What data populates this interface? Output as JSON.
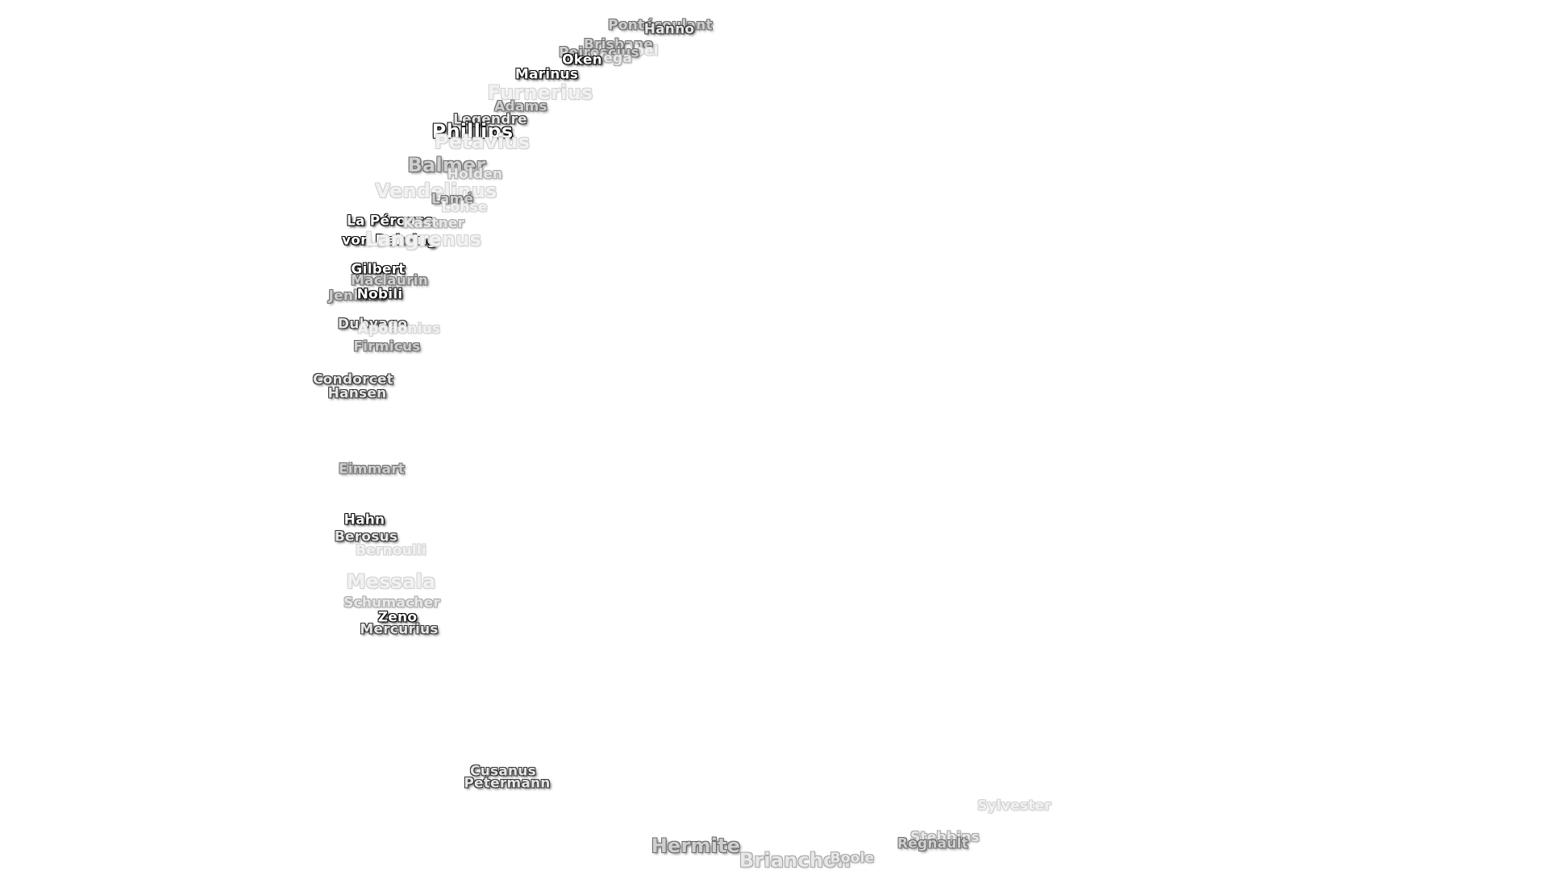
{
  "map_labels": {
    "pontecoulant": "Pontécoulant",
    "hanno": "Hanno",
    "brisbane": "Brisbane",
    "abel": "Abel",
    "peirescius": "Peirescius",
    "vega": "Vega",
    "oken": "Oken",
    "marinus": "Marinus",
    "furnerius": "Furnerius",
    "adams": "Adams",
    "legendre": "Legendre",
    "phillips": "Phillips",
    "petavius": "Petavius",
    "balmer": "Balmer",
    "holden": "Holden",
    "vendelinus": "Vendelinus",
    "lame": "Lamé",
    "lohse": "Lohse",
    "la_perouse": "La Pérouse",
    "kastner": "Kästner",
    "von_behring": "von Behring",
    "langrenus": "Langrenus",
    "gilbert": "Gilbert",
    "maclaurin": "Maclaurin",
    "jenkins": "Jenkins",
    "nobili": "Nobili",
    "dubyago": "Dubyago",
    "apollonius": "Apollonius",
    "firmicus": "Firmicus",
    "condorcet": "Condorcet",
    "hansen": "Hansen",
    "eimmart": "Eimmart",
    "hahn": "Hahn",
    "berosus": "Berosus",
    "bernoulli": "Bernoulli",
    "messala": "Messala",
    "schumacher": "Schumacher",
    "zeno": "Zeno",
    "mercurius": "Mercurius",
    "cusanus": "Cusanus",
    "petermann": "Petermann",
    "hermite": "Hermite",
    "brianchon": "Brianchon",
    "boole": "Boole",
    "sylvester": "Sylvester",
    "stebbins": "Stebbins",
    "regnault": "Regnault"
  }
}
